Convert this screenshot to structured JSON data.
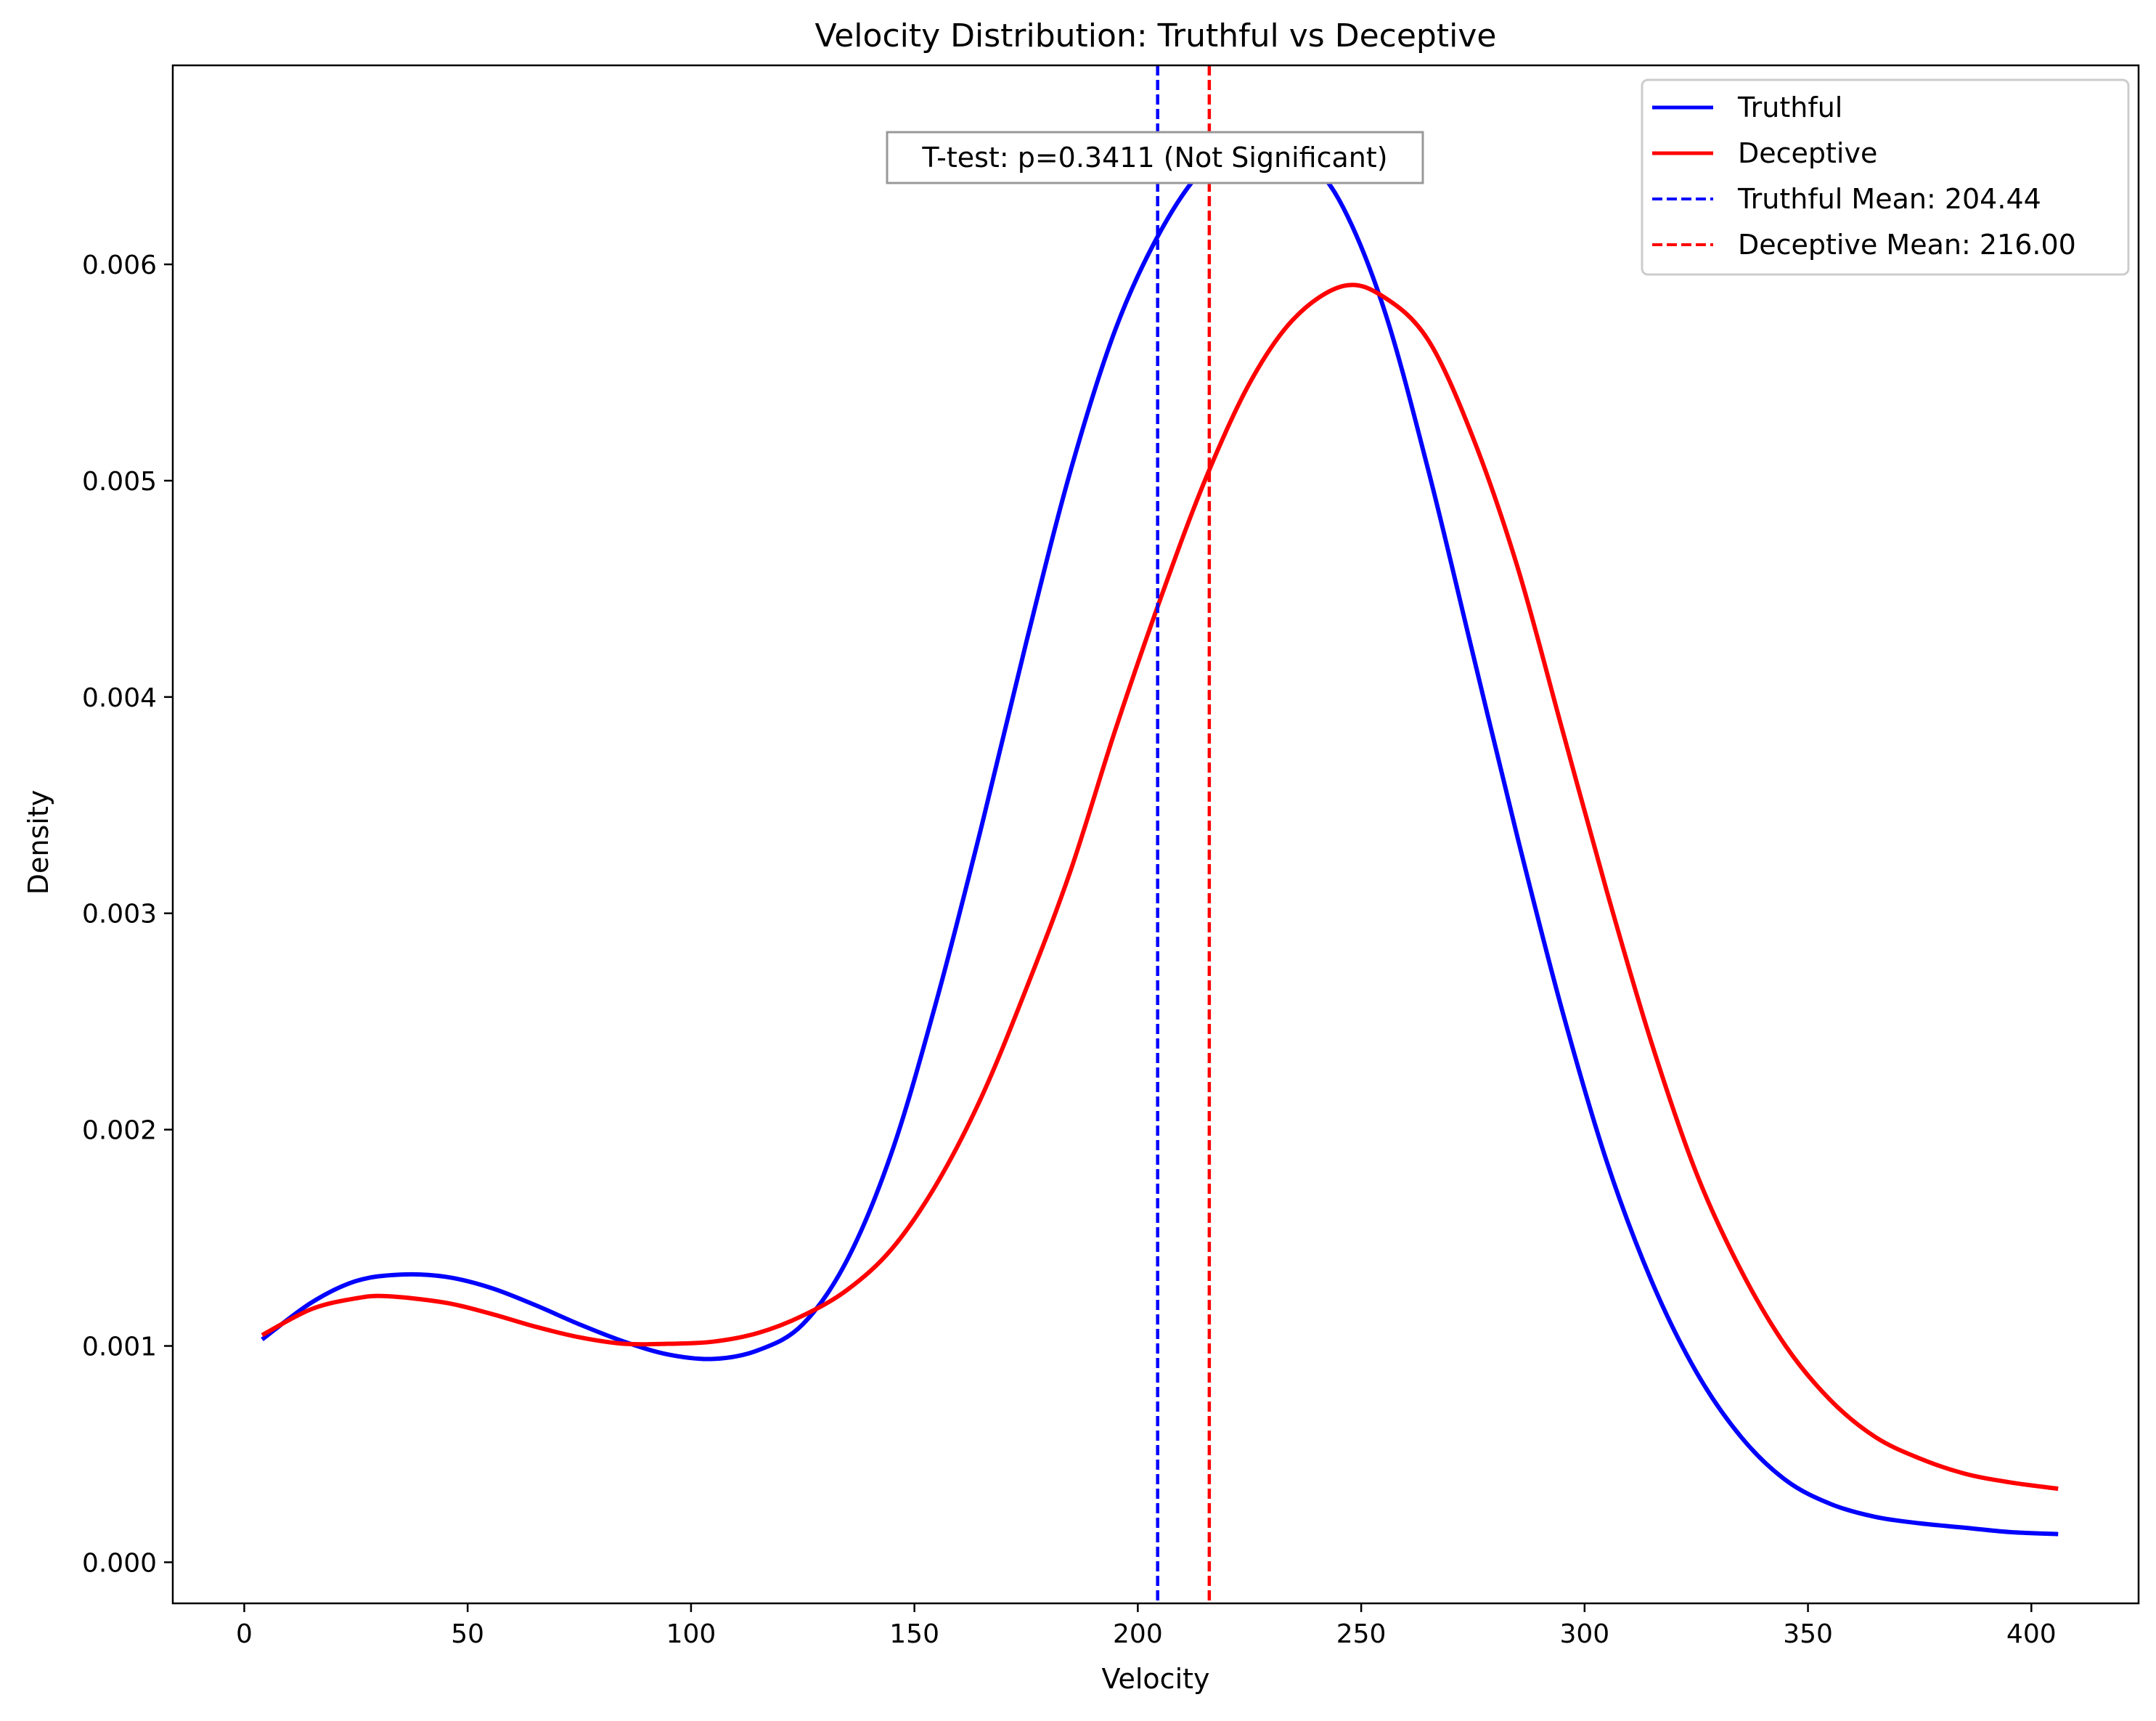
{
  "chart_data": {
    "type": "line",
    "title": "Velocity Distribution: Truthful vs Deceptive",
    "xlabel": "Velocity",
    "ylabel": "Density",
    "xlim": [
      -16,
      424
    ],
    "ylim": [
      -0.00019,
      0.00692
    ],
    "x_ticks": [
      0,
      50,
      100,
      150,
      200,
      250,
      300,
      350,
      400
    ],
    "x_tick_labels": [
      "0",
      "50",
      "100",
      "150",
      "200",
      "250",
      "300",
      "350",
      "400"
    ],
    "y_ticks": [
      0.0,
      0.001,
      0.002,
      0.003,
      0.004,
      0.005,
      0.006
    ],
    "y_tick_labels": [
      "0.000",
      "0.001",
      "0.002",
      "0.003",
      "0.004",
      "0.005",
      "0.006"
    ],
    "grid": false,
    "legend": {
      "placement": "top-right",
      "entries": [
        {
          "label": "Truthful",
          "color": "#0000ff",
          "style": "solid"
        },
        {
          "label": "Deceptive",
          "color": "#ff0000",
          "style": "solid"
        },
        {
          "label": "Truthful Mean: 204.44",
          "color": "#0000ff",
          "style": "dashed"
        },
        {
          "label": "Deceptive Mean: 216.00",
          "color": "#ff0000",
          "style": "dashed"
        }
      ]
    },
    "annotation": "T-test: p=0.3411 (Not Significant)",
    "series": [
      {
        "name": "Truthful",
        "color": "#0000ff",
        "x": [
          4,
          15,
          25,
          35,
          45,
          55,
          65,
          75,
          85,
          95,
          105,
          115,
          125,
          135,
          145,
          155,
          165,
          175,
          185,
          195,
          205,
          215,
          225,
          230,
          235,
          245,
          255,
          265,
          275,
          285,
          295,
          305,
          315,
          325,
          335,
          345,
          355,
          365,
          375,
          385,
          395,
          406
        ],
        "y": [
          0.00103,
          0.0012,
          0.0013,
          0.00133,
          0.00132,
          0.00127,
          0.00119,
          0.0011,
          0.00102,
          0.00096,
          0.00094,
          0.00098,
          0.0011,
          0.0014,
          0.0019,
          0.0026,
          0.0034,
          0.00425,
          0.00505,
          0.0057,
          0.00615,
          0.00645,
          0.00658,
          0.00659,
          0.00655,
          0.0063,
          0.0058,
          0.00505,
          0.0042,
          0.00335,
          0.00255,
          0.00185,
          0.0013,
          0.00088,
          0.00058,
          0.00038,
          0.00027,
          0.00021,
          0.00018,
          0.00016,
          0.00014,
          0.00013
        ]
      },
      {
        "name": "Deceptive",
        "color": "#ff0000",
        "x": [
          4,
          15,
          25,
          32,
          45,
          55,
          65,
          75,
          85,
          95,
          105,
          115,
          125,
          135,
          145,
          155,
          165,
          175,
          185,
          195,
          205,
          215,
          225,
          235,
          246,
          255,
          265,
          275,
          285,
          295,
          305,
          315,
          325,
          335,
          345,
          355,
          365,
          375,
          385,
          395,
          406
        ],
        "y": [
          0.00105,
          0.00117,
          0.00122,
          0.00123,
          0.0012,
          0.00115,
          0.00109,
          0.00104,
          0.00101,
          0.00101,
          0.00102,
          0.00106,
          0.00114,
          0.00126,
          0.00145,
          0.00175,
          0.00215,
          0.00265,
          0.0032,
          0.00385,
          0.00445,
          0.005,
          0.00545,
          0.00575,
          0.0059,
          0.00585,
          0.00565,
          0.0052,
          0.0046,
          0.00385,
          0.0031,
          0.0024,
          0.0018,
          0.00135,
          0.001,
          0.00075,
          0.00058,
          0.00048,
          0.00041,
          0.00037,
          0.00034
        ]
      }
    ],
    "vlines": [
      {
        "name": "Truthful Mean",
        "x": 204.44,
        "color": "#0000ff"
      },
      {
        "name": "Deceptive Mean",
        "x": 216.0,
        "color": "#ff0000"
      }
    ]
  }
}
